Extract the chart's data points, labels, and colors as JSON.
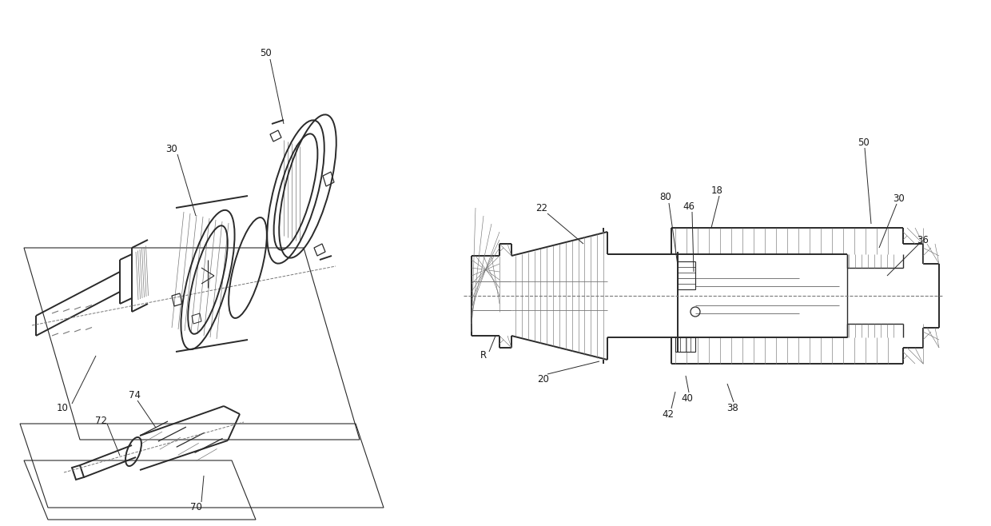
{
  "bg_color": "#ffffff",
  "lc": "#2a2a2a",
  "llc": "#777777",
  "fig_width": 12.4,
  "fig_height": 6.58,
  "dpi": 100
}
